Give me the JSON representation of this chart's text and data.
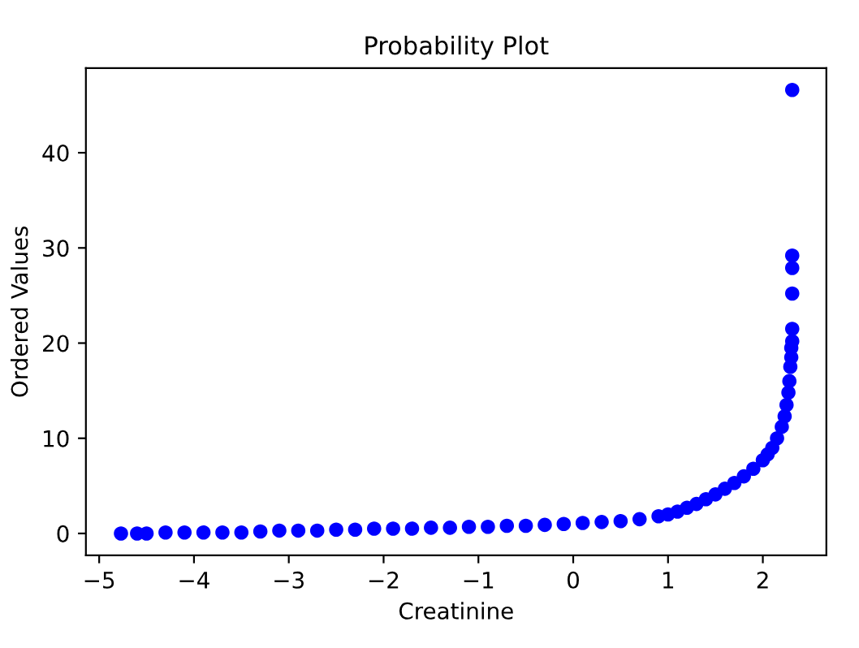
{
  "chart_data": {
    "type": "scatter",
    "title": "Probability Plot",
    "xlabel": "Creatinine",
    "ylabel": "Ordered Values",
    "xlim": [
      -5.14,
      2.67
    ],
    "ylim": [
      -2.3,
      48.9
    ],
    "xticks": [
      {
        "value": -5,
        "label": "−5"
      },
      {
        "value": -4,
        "label": "−4"
      },
      {
        "value": -3,
        "label": "−3"
      },
      {
        "value": -2,
        "label": "−2"
      },
      {
        "value": -1,
        "label": "−1"
      },
      0,
      1,
      2
    ],
    "yticks": [
      0,
      10,
      20,
      30,
      40
    ],
    "marker": "circle",
    "grid": false,
    "series": [
      {
        "color": "#0000ff",
        "x": [
          -4.77,
          -4.6,
          -4.5,
          -4.3,
          -4.1,
          -3.9,
          -3.7,
          -3.5,
          -3.3,
          -3.1,
          -2.9,
          -2.7,
          -2.5,
          -2.3,
          -2.1,
          -1.9,
          -1.7,
          -1.5,
          -1.3,
          -1.1,
          -0.9,
          -0.7,
          -0.5,
          -0.3,
          -0.1,
          0.1,
          0.3,
          0.5,
          0.7,
          0.9,
          1.0,
          1.1,
          1.2,
          1.3,
          1.4,
          1.5,
          1.6,
          1.7,
          1.8,
          1.9,
          2.0,
          2.05,
          2.1,
          2.15,
          2.2,
          2.23,
          2.25,
          2.27,
          2.28,
          2.29,
          2.3,
          2.3,
          2.31,
          2.31,
          2.31,
          2.31,
          2.31,
          2.31
        ],
        "values": [
          0.0,
          0.0,
          0.0,
          0.1,
          0.1,
          0.1,
          0.1,
          0.1,
          0.2,
          0.3,
          0.3,
          0.3,
          0.4,
          0.4,
          0.5,
          0.5,
          0.5,
          0.6,
          0.6,
          0.7,
          0.7,
          0.8,
          0.8,
          0.9,
          1.0,
          1.1,
          1.2,
          1.3,
          1.5,
          1.8,
          2.0,
          2.3,
          2.7,
          3.1,
          3.6,
          4.1,
          4.7,
          5.3,
          6.0,
          6.8,
          7.7,
          8.3,
          9.0,
          10.0,
          11.2,
          12.3,
          13.5,
          14.8,
          16.0,
          17.5,
          18.5,
          19.5,
          20.2,
          21.5,
          25.2,
          27.9,
          29.2,
          46.6
        ]
      }
    ]
  }
}
